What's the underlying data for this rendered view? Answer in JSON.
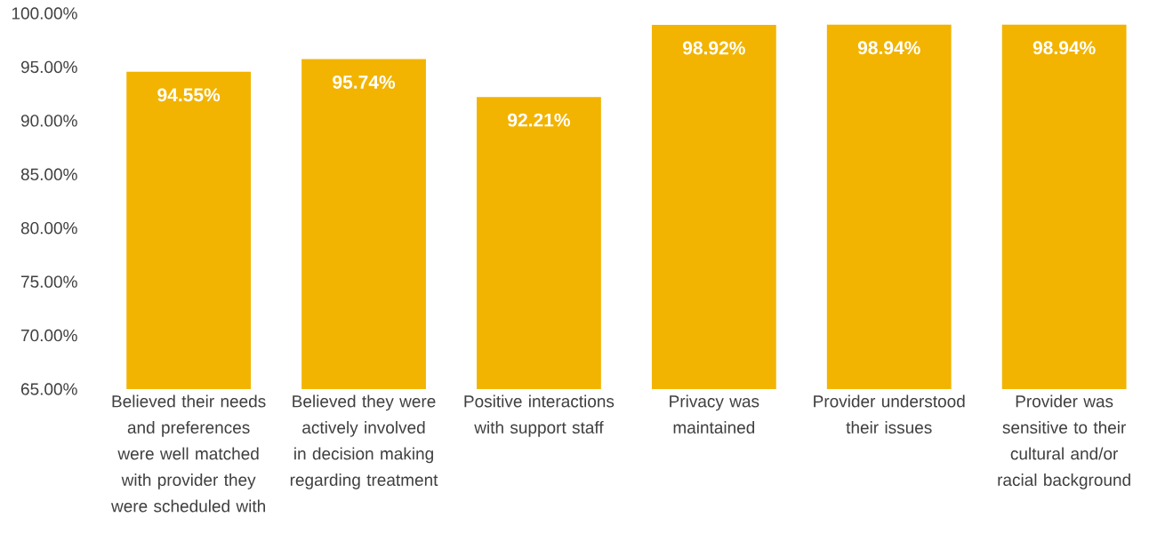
{
  "chart_data": {
    "type": "bar",
    "categories": [
      "Believed their needs and preferences were well matched with provider they were scheduled with",
      "Believed they were actively involved in decision making regarding treatment",
      "Positive interactions with support staff",
      "Privacy was maintained",
      "Provider understood their issues",
      "Provider was sensitive to their cultural and/or racial background"
    ],
    "values": [
      94.55,
      95.74,
      92.21,
      98.92,
      98.94,
      98.94
    ],
    "value_labels": [
      "94.55%",
      "95.74%",
      "92.21%",
      "98.92%",
      "98.94%",
      "98.94%"
    ],
    "color": "#f2b400",
    "ylim": [
      65,
      100
    ],
    "yticks": [
      {
        "value": 65,
        "label": "65.00%"
      },
      {
        "value": 70,
        "label": "70.00%"
      },
      {
        "value": 75,
        "label": "75.00%"
      },
      {
        "value": 80,
        "label": "80.00%"
      },
      {
        "value": 85,
        "label": "85.00%"
      },
      {
        "value": 90,
        "label": "90.00%"
      },
      {
        "value": 95,
        "label": "95.00%"
      },
      {
        "value": 100,
        "label": "100.00%"
      }
    ],
    "grid": false
  }
}
